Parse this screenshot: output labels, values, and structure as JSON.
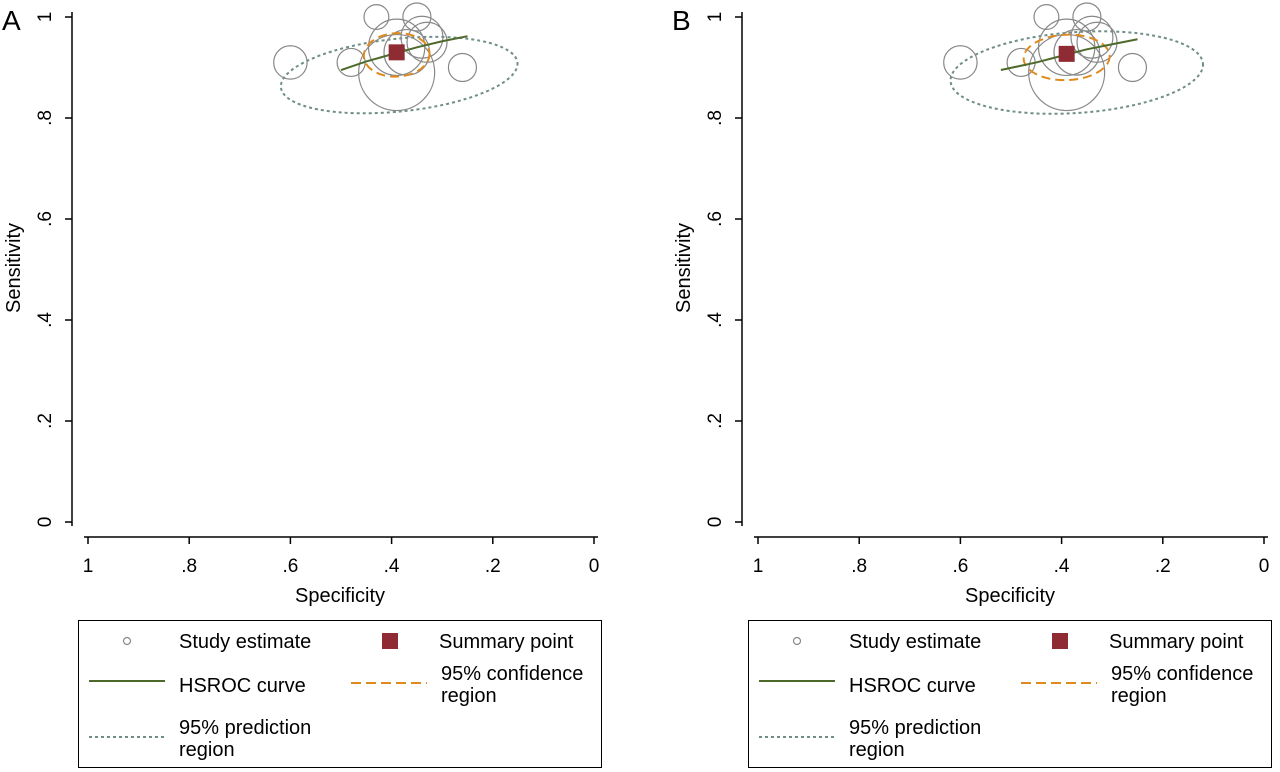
{
  "chart_data": [
    {
      "type": "scatter",
      "panel_label": "A",
      "xlabel": "Specificity",
      "ylabel": "Sensitivity",
      "xlim": [
        1,
        0
      ],
      "ylim": [
        0,
        1
      ],
      "x_ticks": [
        1,
        0.8,
        0.6,
        0.4,
        0.2,
        0
      ],
      "x_tick_labels": [
        "1",
        ".8",
        ".6",
        ".4",
        ".2",
        "0"
      ],
      "y_ticks": [
        0,
        0.2,
        0.4,
        0.6,
        0.8,
        1
      ],
      "y_tick_labels": [
        "0",
        ".2",
        ".4",
        ".6",
        ".8",
        "1"
      ],
      "grid": false,
      "legend_position": "bottom",
      "study_estimates": [
        {
          "specificity": 0.43,
          "sensitivity": 1.0,
          "weight": 3
        },
        {
          "specificity": 0.35,
          "sensitivity": 1.0,
          "weight": 4
        },
        {
          "specificity": 0.6,
          "sensitivity": 0.91,
          "weight": 6
        },
        {
          "specificity": 0.48,
          "sensitivity": 0.91,
          "weight": 4
        },
        {
          "specificity": 0.26,
          "sensitivity": 0.9,
          "weight": 4
        },
        {
          "specificity": 0.39,
          "sensitivity": 0.94,
          "weight": 19
        },
        {
          "specificity": 0.34,
          "sensitivity": 0.96,
          "weight": 10
        },
        {
          "specificity": 0.33,
          "sensitivity": 0.95,
          "weight": 9
        },
        {
          "specificity": 0.37,
          "sensitivity": 0.93,
          "weight": 12
        },
        {
          "specificity": 0.39,
          "sensitivity": 0.89,
          "weight": 36
        }
      ],
      "summary_point": {
        "specificity": 0.39,
        "sensitivity": 0.93
      },
      "hsroc_curve": [
        {
          "specificity": 0.5,
          "sensitivity": 0.895
        },
        {
          "specificity": 0.45,
          "sensitivity": 0.912
        },
        {
          "specificity": 0.4,
          "sensitivity": 0.926
        },
        {
          "specificity": 0.35,
          "sensitivity": 0.94
        },
        {
          "specificity": 0.3,
          "sensitivity": 0.952
        },
        {
          "specificity": 0.25,
          "sensitivity": 0.962
        }
      ],
      "confidence_region": {
        "center_specificity": 0.39,
        "center_sensitivity": 0.925,
        "specificity_radius": 0.065,
        "sensitivity_radius": 0.043,
        "tilt_deg": -3
      },
      "prediction_region": {
        "center_specificity": 0.385,
        "center_sensitivity": 0.885,
        "specificity_radius": 0.235,
        "sensitivity_radius": 0.072,
        "tilt_deg": -6
      },
      "legend": {
        "study_estimate": "Study estimate",
        "summary_point": "Summary point",
        "hsroc_curve": "HSROC curve",
        "confidence_line1": "95% confidence",
        "confidence_line2": "region",
        "prediction_line1": "95% prediction",
        "prediction_line2": "region"
      },
      "colors": {
        "summary": "#8e2b33",
        "hsroc": "#4e6a2b",
        "confidence": "#e08a1e",
        "prediction": "#6f8e86",
        "study": "#888888"
      }
    },
    {
      "type": "scatter",
      "panel_label": "B",
      "xlabel": "Specificity",
      "ylabel": "Sensitivity",
      "xlim": [
        1,
        0
      ],
      "ylim": [
        0,
        1
      ],
      "x_ticks": [
        1,
        0.8,
        0.6,
        0.4,
        0.2,
        0
      ],
      "x_tick_labels": [
        "1",
        ".8",
        ".6",
        ".4",
        ".2",
        "0"
      ],
      "y_ticks": [
        0,
        0.2,
        0.4,
        0.6,
        0.8,
        1
      ],
      "y_tick_labels": [
        "0",
        ".2",
        ".4",
        ".6",
        ".8",
        "1"
      ],
      "grid": false,
      "legend_position": "bottom",
      "study_estimates": [
        {
          "specificity": 0.43,
          "sensitivity": 1.0,
          "weight": 3
        },
        {
          "specificity": 0.35,
          "sensitivity": 1.0,
          "weight": 4
        },
        {
          "specificity": 0.6,
          "sensitivity": 0.91,
          "weight": 6
        },
        {
          "specificity": 0.48,
          "sensitivity": 0.91,
          "weight": 4
        },
        {
          "specificity": 0.26,
          "sensitivity": 0.9,
          "weight": 4
        },
        {
          "specificity": 0.39,
          "sensitivity": 0.94,
          "weight": 19
        },
        {
          "specificity": 0.34,
          "sensitivity": 0.96,
          "weight": 10
        },
        {
          "specificity": 0.33,
          "sensitivity": 0.95,
          "weight": 9
        },
        {
          "specificity": 0.37,
          "sensitivity": 0.93,
          "weight": 12
        },
        {
          "specificity": 0.39,
          "sensitivity": 0.89,
          "weight": 36
        }
      ],
      "summary_point": {
        "specificity": 0.39,
        "sensitivity": 0.927
      },
      "hsroc_curve": [
        {
          "specificity": 0.52,
          "sensitivity": 0.895
        },
        {
          "specificity": 0.45,
          "sensitivity": 0.91
        },
        {
          "specificity": 0.4,
          "sensitivity": 0.923
        },
        {
          "specificity": 0.35,
          "sensitivity": 0.936
        },
        {
          "specificity": 0.3,
          "sensitivity": 0.946
        },
        {
          "specificity": 0.25,
          "sensitivity": 0.956
        }
      ],
      "confidence_region": {
        "center_specificity": 0.39,
        "center_sensitivity": 0.92,
        "specificity_radius": 0.085,
        "sensitivity_radius": 0.045,
        "tilt_deg": -2
      },
      "prediction_region": {
        "center_specificity": 0.37,
        "center_sensitivity": 0.89,
        "specificity_radius": 0.25,
        "sensitivity_radius": 0.08,
        "tilt_deg": -4
      },
      "legend": {
        "study_estimate": "Study estimate",
        "summary_point": "Summary point",
        "hsroc_curve": "HSROC curve",
        "confidence_line1": "95% confidence",
        "confidence_line2": "region",
        "prediction_line1": "95% prediction",
        "prediction_line2": "region"
      },
      "colors": {
        "summary": "#8e2b33",
        "hsroc": "#4e6a2b",
        "confidence": "#e08a1e",
        "prediction": "#6f8e86",
        "study": "#888888"
      }
    }
  ]
}
